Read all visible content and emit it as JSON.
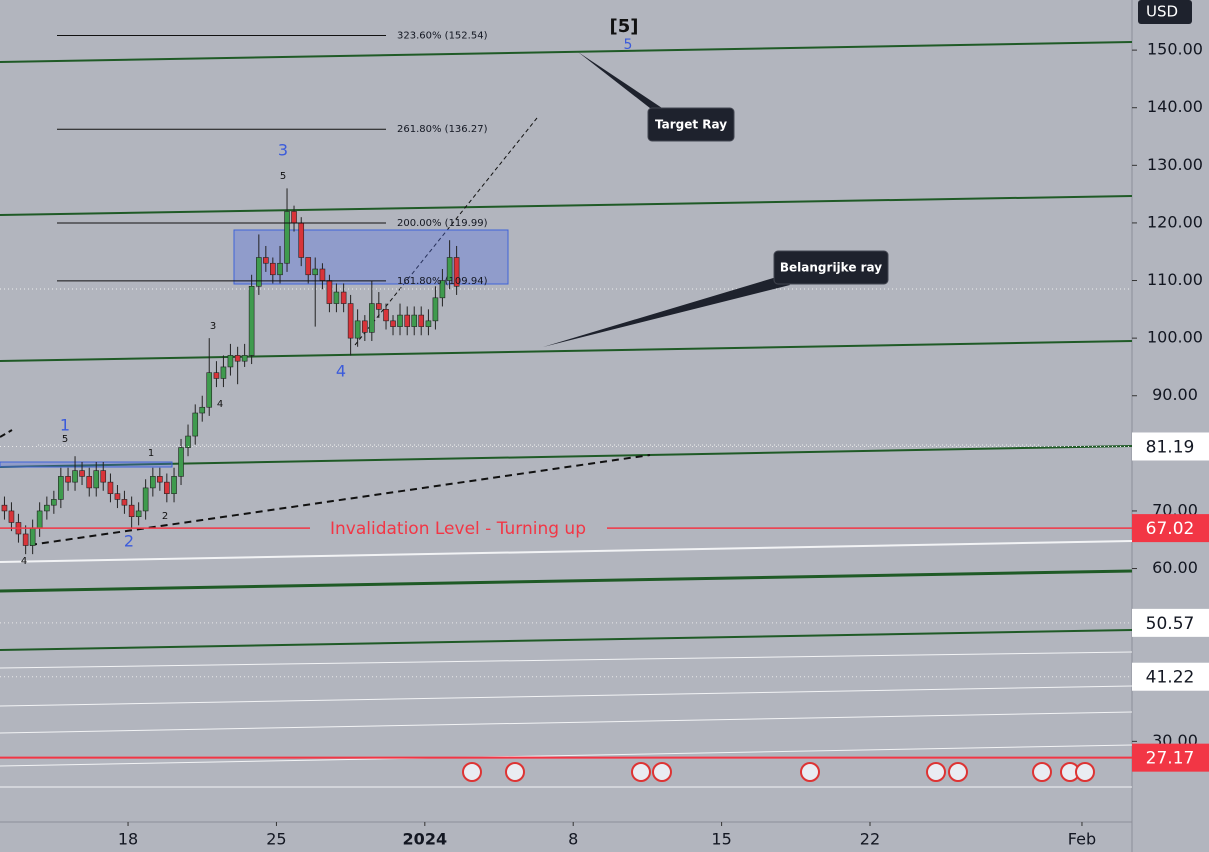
{
  "chart_data": {
    "type": "candlestick",
    "currency": "USD",
    "x": [
      12.17,
      12.5,
      12.83,
      13.17,
      13.5,
      13.83,
      14.17,
      14.5,
      14.83,
      15.17,
      15.5,
      15.83,
      16.17,
      16.5,
      16.83,
      17.17,
      17.5,
      17.83,
      18.17,
      18.5,
      18.83,
      19.17,
      19.5,
      19.83,
      20.17,
      20.5,
      20.83,
      21.17,
      21.5,
      21.83,
      22.17,
      22.5,
      22.83,
      23.17,
      23.5,
      23.83,
      24.17,
      24.5,
      24.83,
      25.17,
      25.5,
      25.83,
      26.17,
      26.5,
      26.83,
      27.17,
      27.5,
      27.83,
      28.17,
      28.5,
      28.83,
      29.17,
      29.5,
      29.83,
      30.17,
      30.5,
      30.83,
      31.17,
      31.5,
      31.83,
      32.17,
      32.5,
      32.83,
      33.17,
      33.5
    ],
    "open": [
      71,
      70,
      68,
      66,
      64,
      67,
      70,
      71,
      72,
      76,
      75,
      77,
      76,
      74,
      77,
      75,
      73,
      72,
      71,
      69,
      70,
      74,
      76,
      75,
      73,
      76,
      81,
      83,
      87,
      88,
      94,
      93,
      95,
      97,
      96,
      97,
      109,
      114,
      113,
      111,
      113,
      122,
      120,
      114,
      111,
      112,
      110,
      106,
      108,
      106,
      100,
      103,
      101,
      106,
      105,
      103,
      102,
      104,
      102,
      104,
      102,
      103,
      107,
      110,
      114
    ],
    "high": [
      72.5,
      71.5,
      69.5,
      67.5,
      68.5,
      71.5,
      72.5,
      73.5,
      77.5,
      77.5,
      79.5,
      78.5,
      77.5,
      78.5,
      78.5,
      76.5,
      74.5,
      73.5,
      72.5,
      71.5,
      75.5,
      77.5,
      77.5,
      76.5,
      77.5,
      82.5,
      85,
      88.5,
      90,
      100,
      96,
      97,
      99,
      98.5,
      99,
      111,
      118,
      116,
      114,
      116,
      126,
      123,
      121,
      114,
      114,
      113,
      111,
      109.5,
      109.5,
      107.5,
      105,
      104,
      110,
      108,
      106,
      104,
      106,
      105.5,
      105.5,
      105.5,
      105,
      109,
      112,
      117,
      116
    ],
    "low": [
      68.5,
      66.5,
      64.5,
      62.5,
      62.5,
      65.5,
      68.5,
      69.5,
      70.5,
      73.5,
      73.5,
      74.5,
      72.5,
      72.5,
      73.5,
      71.5,
      70.5,
      69.5,
      67,
      67.5,
      68.5,
      72.5,
      73.5,
      71.5,
      71.5,
      74.5,
      79.5,
      81.5,
      85.5,
      86.5,
      91.5,
      91.5,
      93.5,
      92,
      95,
      95.5,
      107.5,
      111.5,
      109.5,
      109.5,
      111.5,
      118.5,
      112.5,
      109.5,
      102,
      108.5,
      104.5,
      104.5,
      104.5,
      97,
      98.5,
      99.5,
      99.5,
      103.5,
      101.5,
      100.5,
      100.5,
      100.5,
      100.5,
      100.5,
      100.5,
      101.5,
      105.5,
      108.5,
      107.5
    ],
    "close": [
      70,
      68,
      66,
      64,
      67,
      70,
      71,
      72,
      76,
      75,
      77,
      76,
      74,
      77,
      75,
      73,
      72,
      71,
      69,
      70,
      74,
      76,
      75,
      73,
      76,
      81,
      83,
      87,
      88,
      94,
      93,
      95,
      97,
      96,
      97,
      109,
      114,
      113,
      111,
      113,
      122,
      120,
      114,
      111,
      112,
      110,
      106,
      108,
      106,
      100,
      103,
      101,
      106,
      105,
      103,
      102,
      104,
      102,
      104,
      102,
      103,
      107,
      110,
      114,
      109
    ],
    "up_color": "#3f9b4e",
    "down_color": "#d8343a",
    "xlim": [
      11.96,
      65.36
    ],
    "xticks": [
      {
        "value": 18,
        "label": "18"
      },
      {
        "value": 25,
        "label": "25"
      },
      {
        "value": 32,
        "label": "2024"
      },
      {
        "value": 39,
        "label": "8"
      },
      {
        "value": 46,
        "label": "15"
      },
      {
        "value": 53,
        "label": "22"
      },
      {
        "value": 63,
        "label": "Feb"
      }
    ],
    "ylim": [
      16,
      158.7
    ],
    "yticks": [
      {
        "value": 150,
        "label": "150.00"
      },
      {
        "value": 140,
        "label": "140.00"
      },
      {
        "value": 130,
        "label": "130.00"
      },
      {
        "value": 120,
        "label": "120.00"
      },
      {
        "value": 110,
        "label": "110.00"
      },
      {
        "value": 100,
        "label": "100.00"
      },
      {
        "value": 90,
        "label": "90.00"
      },
      {
        "value": 70,
        "label": "70.00"
      },
      {
        "value": 60,
        "label": "60.00"
      },
      {
        "value": 30,
        "label": "30.00"
      }
    ],
    "price_labels": [
      {
        "value": 81.19,
        "label": "81.19",
        "color": "#ffffff"
      },
      {
        "value": 67.02,
        "label": "67.02",
        "color": "#f23645"
      },
      {
        "value": 50.57,
        "label": "50.57",
        "color": "#ffffff"
      },
      {
        "value": 41.22,
        "label": "41.22",
        "color": "#ffffff"
      },
      {
        "value": 27.17,
        "label": "27.17",
        "color": "#f23645"
      }
    ],
    "fib_levels": [
      {
        "value": 152.54,
        "label": "323.60% (152.54)"
      },
      {
        "value": 136.27,
        "label": "261.80% (136.27)"
      },
      {
        "value": 119.99,
        "label": "200.00% (119.99)"
      },
      {
        "value": 109.94,
        "label": "161.80% (109.94)"
      }
    ],
    "callouts": [
      "Target Ray",
      "Belangrijke ray"
    ],
    "invalidation_text": "Invalidation Level - Turning up",
    "wave_labels": [
      "[5]",
      "5",
      "3",
      "5",
      "3",
      "4",
      "4",
      "1",
      "5",
      "1",
      "2",
      "2",
      "4"
    ]
  }
}
